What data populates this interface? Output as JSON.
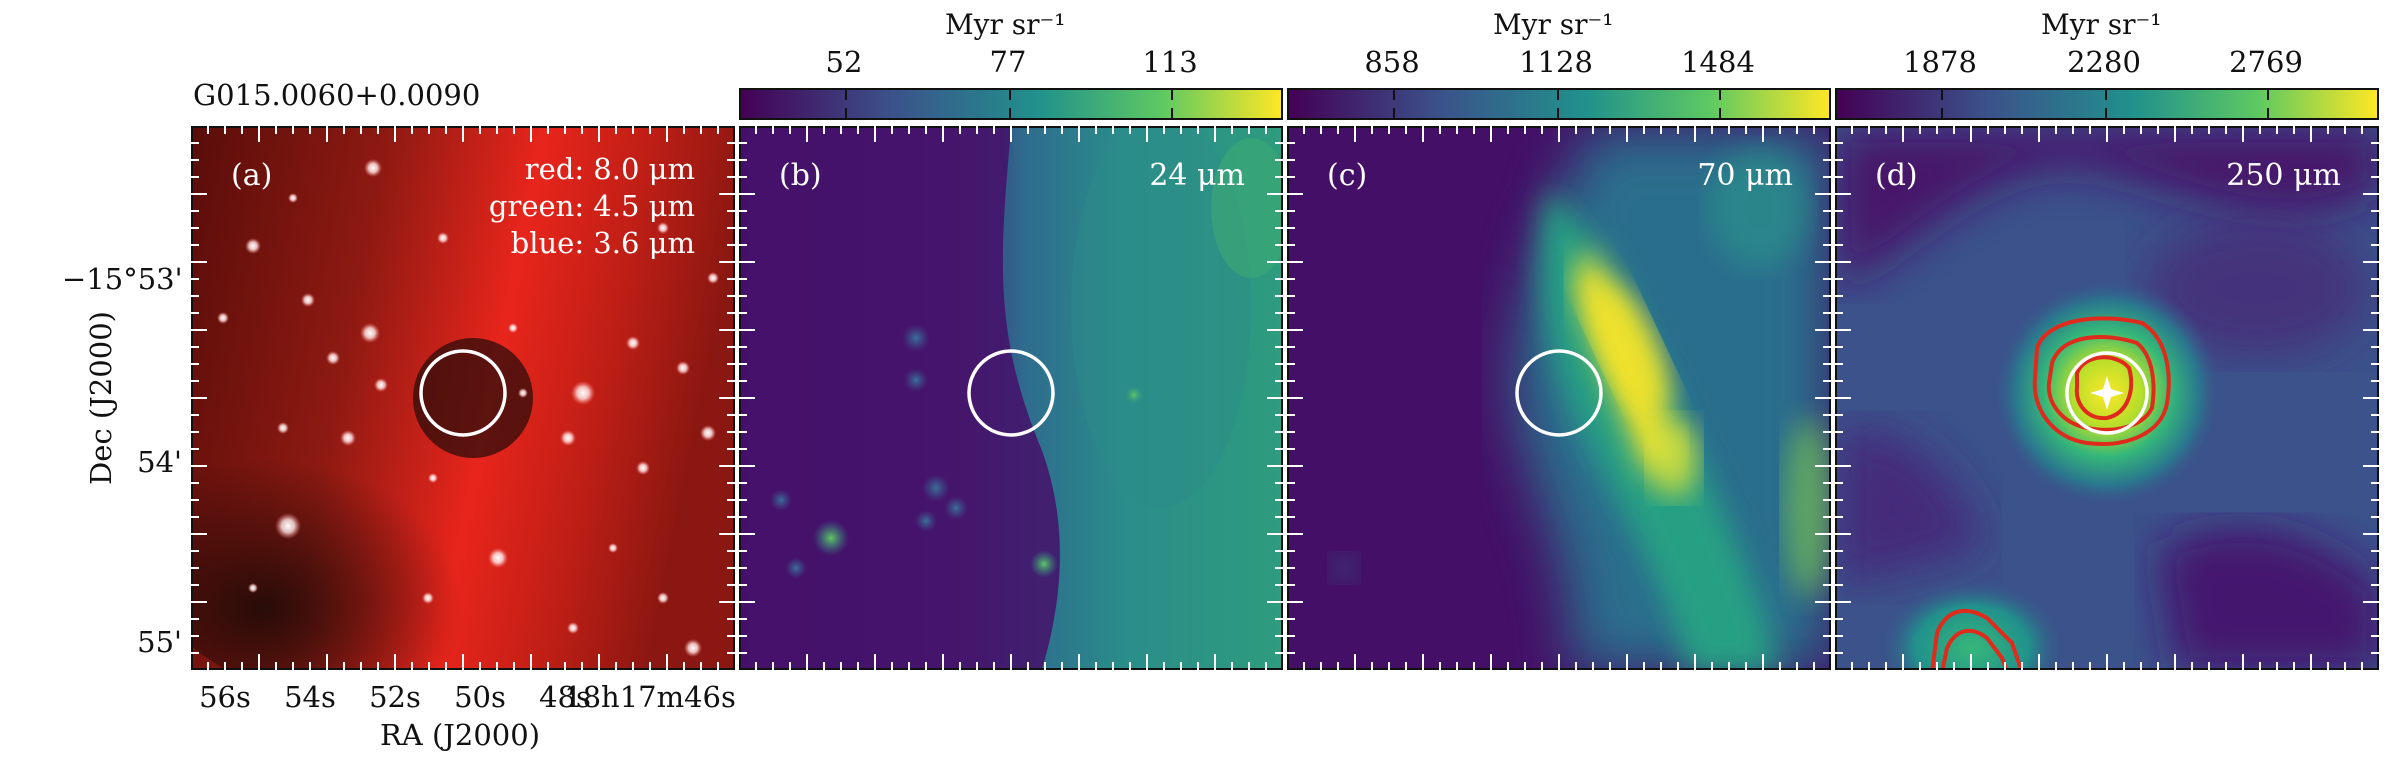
{
  "figure": {
    "source_name": "G015.0060+0.0090",
    "y_axis_label": "Dec (J2000)",
    "x_axis_label": "RA (J2000)",
    "y_ticks": [
      "−15°53'",
      "54'",
      "55'"
    ],
    "x_ticks": [
      "56s",
      "54s",
      "52s",
      "50s",
      "48s",
      "18h17m46s"
    ]
  },
  "panels": [
    {
      "letter": "(a)",
      "rgb_legend": [
        "red: 8.0 μm",
        "green: 4.5 μm",
        "blue: 3.6 μm"
      ],
      "colors": {
        "background": "#7a1510",
        "ridge": "#e8251c",
        "dark_cloud": "#1e0a07"
      }
    },
    {
      "letter": "(b)",
      "band": "24 μm",
      "colorbar": {
        "label": "Myr sr⁻¹",
        "ticks": [
          "52",
          "77",
          "113"
        ]
      },
      "colors": {
        "low": "#440154",
        "high": "#fde725"
      }
    },
    {
      "letter": "(c)",
      "band": "70 μm",
      "colorbar": {
        "label": "Myr sr⁻¹",
        "ticks": [
          "858",
          "1128",
          "1484"
        ]
      },
      "colors": {
        "low": "#440154",
        "high": "#fde725"
      }
    },
    {
      "letter": "(d)",
      "band": "250 μm",
      "colorbar": {
        "label": "Myr sr⁻¹",
        "ticks": [
          "1878",
          "2280",
          "2769"
        ]
      },
      "colors": {
        "low": "#440154",
        "high": "#fde725",
        "contour": "#e02a1c"
      }
    }
  ],
  "marker_color": "#ffffff"
}
